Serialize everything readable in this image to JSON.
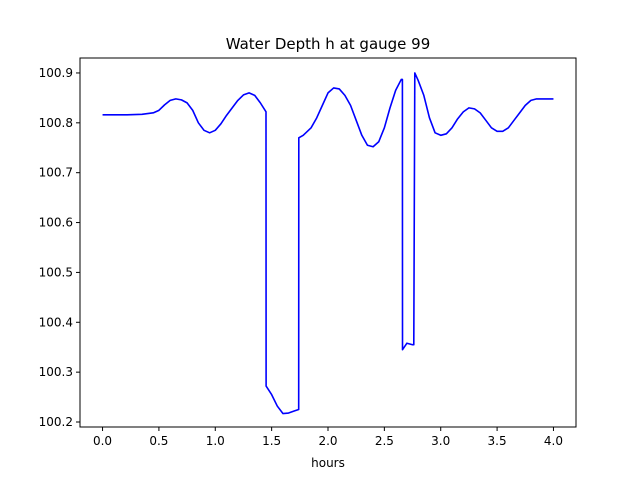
{
  "chart_data": {
    "type": "line",
    "title": "Water Depth h at gauge 99",
    "xlabel": "hours",
    "ylabel": "",
    "xlim": [
      -0.2,
      4.2
    ],
    "ylim": [
      100.19,
      100.93
    ],
    "xticks": [
      0.0,
      0.5,
      1.0,
      1.5,
      2.0,
      2.5,
      3.0,
      3.5,
      4.0
    ],
    "xtick_labels": [
      "0.0",
      "0.5",
      "1.0",
      "1.5",
      "2.0",
      "2.5",
      "3.0",
      "3.5",
      "4.0"
    ],
    "yticks": [
      100.2,
      100.3,
      100.4,
      100.5,
      100.6,
      100.7,
      100.8,
      100.9
    ],
    "ytick_labels": [
      "100.2",
      "100.3",
      "100.4",
      "100.5",
      "100.6",
      "100.7",
      "100.8",
      "100.9"
    ],
    "grid": false,
    "series": [
      {
        "color": "#0000ff",
        "x": [
          0.0,
          0.2,
          0.35,
          0.45,
          0.5,
          0.55,
          0.6,
          0.65,
          0.7,
          0.75,
          0.8,
          0.85,
          0.9,
          0.95,
          1.0,
          1.05,
          1.1,
          1.15,
          1.2,
          1.25,
          1.3,
          1.35,
          1.4,
          1.45,
          1.451,
          1.5,
          1.55,
          1.6,
          1.65,
          1.7,
          1.74,
          1.741,
          1.78,
          1.85,
          1.9,
          1.95,
          2.0,
          2.05,
          2.1,
          2.15,
          2.2,
          2.25,
          2.3,
          2.35,
          2.4,
          2.45,
          2.5,
          2.55,
          2.6,
          2.65,
          2.66,
          2.661,
          2.7,
          2.75,
          2.761,
          2.77,
          2.8,
          2.85,
          2.9,
          2.95,
          3.0,
          3.05,
          3.1,
          3.15,
          3.2,
          3.25,
          3.3,
          3.35,
          3.4,
          3.45,
          3.5,
          3.55,
          3.6,
          3.65,
          3.7,
          3.75,
          3.8,
          3.85,
          3.9,
          3.95,
          4.0
        ],
        "y": [
          100.816,
          100.816,
          100.817,
          100.82,
          100.825,
          100.836,
          100.845,
          100.848,
          100.846,
          100.84,
          100.825,
          100.8,
          100.785,
          100.78,
          100.785,
          100.798,
          100.815,
          100.83,
          100.845,
          100.856,
          100.86,
          100.855,
          100.84,
          100.822,
          100.272,
          100.255,
          100.232,
          100.217,
          100.218,
          100.222,
          100.225,
          100.77,
          100.775,
          100.79,
          100.81,
          100.835,
          100.86,
          100.87,
          100.868,
          100.855,
          100.835,
          100.805,
          100.775,
          100.755,
          100.752,
          100.762,
          100.79,
          100.83,
          100.865,
          100.887,
          100.887,
          100.345,
          100.358,
          100.355,
          100.355,
          100.9,
          100.885,
          100.855,
          100.81,
          100.78,
          100.775,
          100.778,
          100.79,
          100.808,
          100.822,
          100.83,
          100.828,
          100.82,
          100.805,
          100.79,
          100.783,
          100.783,
          100.79,
          100.805,
          100.82,
          100.835,
          100.845,
          100.848,
          100.848,
          100.848,
          100.848
        ]
      }
    ]
  }
}
